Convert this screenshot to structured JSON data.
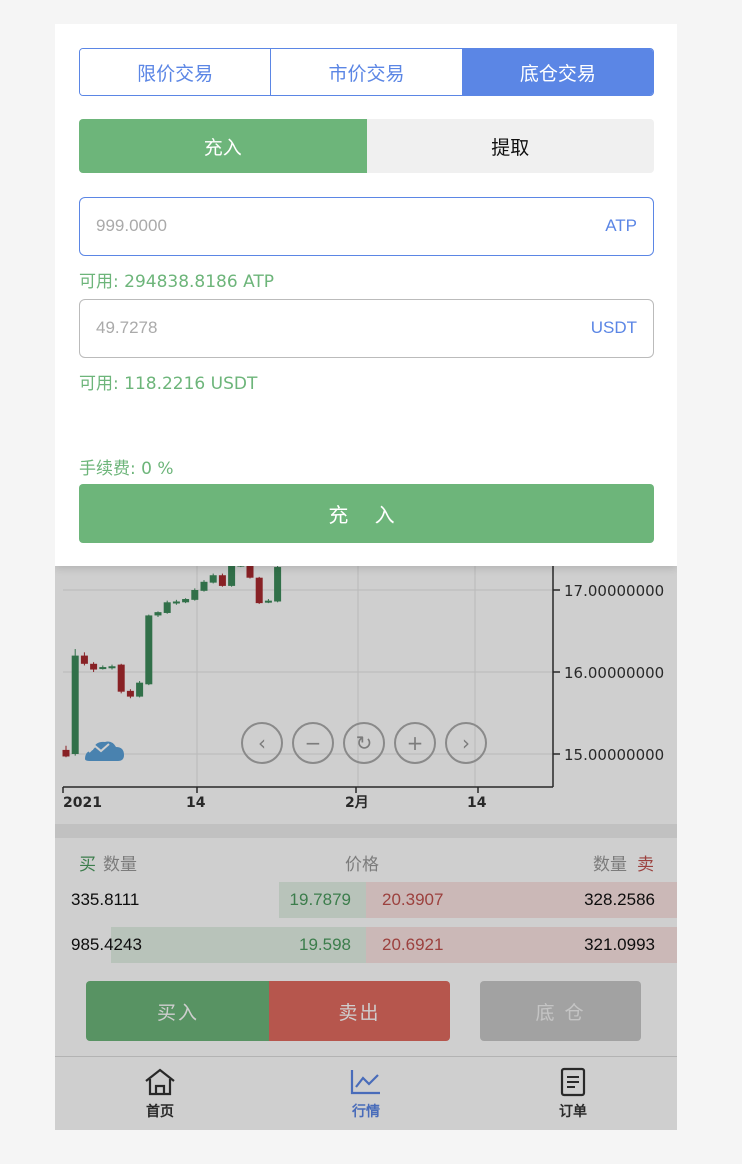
{
  "panel": {
    "mode_tabs": [
      "限价交易",
      "市价交易",
      "底仓交易"
    ],
    "active_mode": 2,
    "direction": {
      "deposit": "充入",
      "withdraw": "提取",
      "active": "deposit"
    },
    "amount_field": {
      "placeholder": "999.0000",
      "unit": "ATP"
    },
    "amount_available": "可用: 294838.8186 ATP",
    "usdt_field": {
      "placeholder": "49.7278",
      "unit": "USDT"
    },
    "usdt_available": "可用: 118.2216 USDT",
    "fee": "手续费: 0 %",
    "submit_label": "充 入"
  },
  "chart": {
    "y_ticks": [
      "17.00000000",
      "16.00000000",
      "15.00000000"
    ],
    "x_ticks": [
      "2021",
      "14",
      "2月",
      "14"
    ],
    "controls": [
      "chevron-left-icon",
      "zoom-out-icon",
      "reset-icon",
      "zoom-in-icon",
      "chevron-right-icon"
    ]
  },
  "chart_data": {
    "type": "candlestick",
    "y_ticks": [
      15.0,
      16.0,
      17.0
    ],
    "x_ticks": [
      "2021",
      "14",
      "2月",
      "14"
    ],
    "candles": [
      {
        "o": 15.05,
        "c": 14.97,
        "h": 15.1,
        "l": 14.96
      },
      {
        "o": 15.0,
        "c": 16.2,
        "h": 16.28,
        "l": 14.98
      },
      {
        "o": 16.2,
        "c": 16.1,
        "h": 16.24,
        "l": 16.08
      },
      {
        "o": 16.1,
        "c": 16.03,
        "h": 16.12,
        "l": 16.0
      },
      {
        "o": 16.06,
        "c": 16.06,
        "h": 16.08,
        "l": 16.03
      },
      {
        "o": 16.05,
        "c": 16.07,
        "h": 16.09,
        "l": 16.03
      },
      {
        "o": 16.09,
        "c": 15.76,
        "h": 16.1,
        "l": 15.74
      },
      {
        "o": 15.77,
        "c": 15.7,
        "h": 15.79,
        "l": 15.68
      },
      {
        "o": 15.7,
        "c": 15.87,
        "h": 15.89,
        "l": 15.69
      },
      {
        "o": 15.85,
        "c": 16.69,
        "h": 16.7,
        "l": 15.84
      },
      {
        "o": 16.69,
        "c": 16.73,
        "h": 16.74,
        "l": 16.67
      },
      {
        "o": 16.72,
        "c": 16.85,
        "h": 16.87,
        "l": 16.71
      },
      {
        "o": 16.84,
        "c": 16.86,
        "h": 16.88,
        "l": 16.82
      },
      {
        "o": 16.85,
        "c": 16.89,
        "h": 16.9,
        "l": 16.84
      },
      {
        "o": 16.88,
        "c": 17.0,
        "h": 17.02,
        "l": 16.87
      },
      {
        "o": 16.99,
        "c": 17.1,
        "h": 17.12,
        "l": 16.98
      },
      {
        "o": 17.09,
        "c": 17.18,
        "h": 17.2,
        "l": 17.08
      },
      {
        "o": 17.18,
        "c": 17.05,
        "h": 17.2,
        "l": 17.04
      },
      {
        "o": 17.05,
        "c": 17.3,
        "h": 17.33,
        "l": 17.04
      },
      {
        "o": 17.3,
        "c": 17.31,
        "h": 17.33,
        "l": 17.28
      },
      {
        "o": 17.3,
        "c": 17.15,
        "h": 17.32,
        "l": 17.14
      },
      {
        "o": 17.15,
        "c": 16.84,
        "h": 17.16,
        "l": 16.83
      },
      {
        "o": 16.86,
        "c": 16.87,
        "h": 16.89,
        "l": 16.84
      },
      {
        "o": 16.86,
        "c": 17.28,
        "h": 17.3,
        "l": 16.85
      }
    ]
  },
  "orderbook": {
    "buy_label": "买",
    "qty_label": "数量",
    "price_label": "价格",
    "sell_label": "卖",
    "rows": [
      {
        "buy_qty": "335.8111",
        "buy_price": "19.7879",
        "sell_price": "20.3907",
        "sell_qty": "328.2586",
        "buy_depth": 0.28,
        "sell_depth": 1.0
      },
      {
        "buy_qty": "985.4243",
        "buy_price": "19.598",
        "sell_price": "20.6921",
        "sell_qty": "321.0993",
        "buy_depth": 0.82,
        "sell_depth": 1.0
      }
    ]
  },
  "actions": {
    "buy": "买入",
    "sell": "卖出",
    "base": "底 仓"
  },
  "tabbar": {
    "home": "首页",
    "market": "行情",
    "orders": "订单",
    "active": "market"
  },
  "colors": {
    "blue": "#5b86e5",
    "green": "#6db57a",
    "red": "#c0504d",
    "up_candle": "#3d8a5a",
    "down_candle": "#a8292e"
  }
}
